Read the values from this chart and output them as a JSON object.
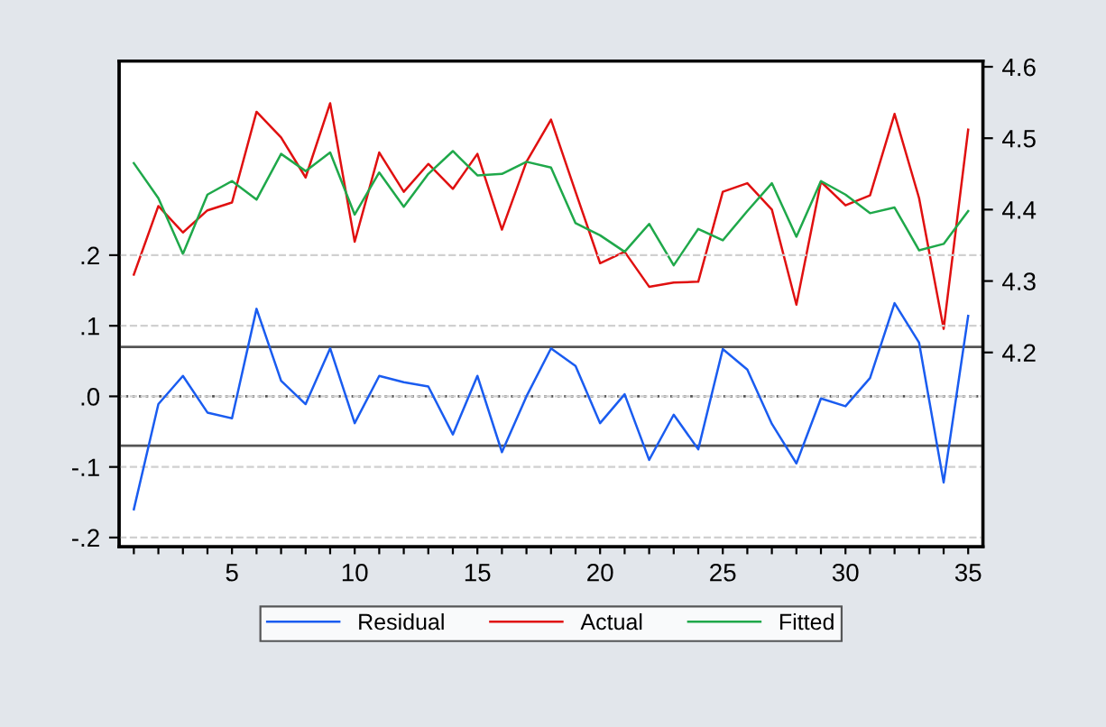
{
  "chart_data": {
    "type": "line",
    "x": [
      1,
      2,
      3,
      4,
      5,
      6,
      7,
      8,
      9,
      10,
      11,
      12,
      13,
      14,
      15,
      16,
      17,
      18,
      19,
      20,
      21,
      22,
      23,
      24,
      25,
      26,
      27,
      28,
      29,
      30,
      31,
      32,
      33,
      34,
      35
    ],
    "series": [
      {
        "name": "Residual",
        "color": "#1a5cf0",
        "values": [
          -0.16,
          -0.011,
          0.029,
          -0.023,
          -0.031,
          0.124,
          0.022,
          -0.011,
          0.068,
          -0.038,
          0.029,
          0.02,
          0.014,
          -0.054,
          0.029,
          -0.079,
          0.0,
          0.068,
          0.043,
          -0.038,
          0.003,
          -0.09,
          -0.026,
          -0.075,
          0.067,
          0.038,
          -0.039,
          -0.095,
          -0.003,
          -0.014,
          0.026,
          0.132,
          0.076,
          -0.122,
          0.114
        ]
      },
      {
        "name": "Actual",
        "color": "#e01010",
        "axis": "y2",
        "values": [
          4.309,
          4.405,
          4.368,
          4.399,
          4.41,
          4.537,
          4.501,
          4.445,
          4.549,
          4.355,
          4.48,
          4.425,
          4.464,
          4.429,
          4.478,
          4.372,
          4.467,
          4.526,
          4.425,
          4.325,
          4.341,
          4.292,
          4.298,
          4.299,
          4.425,
          4.437,
          4.4,
          4.267,
          4.439,
          4.406,
          4.42,
          4.534,
          4.416,
          4.233,
          4.512
        ]
      },
      {
        "name": "Fitted",
        "color": "#1fa84a",
        "axis": "y2",
        "values": [
          4.465,
          4.416,
          4.338,
          4.421,
          4.44,
          4.414,
          4.478,
          4.454,
          4.48,
          4.393,
          4.452,
          4.404,
          4.45,
          4.482,
          4.448,
          4.45,
          4.467,
          4.459,
          4.381,
          4.364,
          4.341,
          4.38,
          4.322,
          4.373,
          4.357,
          4.398,
          4.437,
          4.362,
          4.44,
          4.421,
          4.395,
          4.403,
          4.343,
          4.352,
          4.398
        ]
      }
    ],
    "xlim": [
      0.4,
      35.6
    ],
    "xticks": [
      {
        "value": 1,
        "label": null
      },
      {
        "value": 2,
        "label": null
      },
      {
        "value": 3,
        "label": null
      },
      {
        "value": 4,
        "label": null
      },
      5,
      {
        "value": 6,
        "label": null
      },
      {
        "value": 7,
        "label": null
      },
      {
        "value": 8,
        "label": null
      },
      {
        "value": 9,
        "label": null
      },
      10,
      {
        "value": 11,
        "label": null
      },
      {
        "value": 12,
        "label": null
      },
      {
        "value": 13,
        "label": null
      },
      {
        "value": 14,
        "label": null
      },
      15,
      {
        "value": 16,
        "label": null
      },
      {
        "value": 17,
        "label": null
      },
      {
        "value": 18,
        "label": null
      },
      {
        "value": 19,
        "label": null
      },
      20,
      {
        "value": 21,
        "label": null
      },
      {
        "value": 22,
        "label": null
      },
      {
        "value": 23,
        "label": null
      },
      {
        "value": 24,
        "label": null
      },
      25,
      {
        "value": 26,
        "label": null
      },
      {
        "value": 27,
        "label": null
      },
      {
        "value": 28,
        "label": null
      },
      {
        "value": 29,
        "label": null
      },
      30,
      {
        "value": 31,
        "label": null
      },
      {
        "value": 32,
        "label": null
      },
      {
        "value": 33,
        "label": null
      },
      {
        "value": 34,
        "label": null
      },
      35
    ],
    "ylim": [
      -0.213,
      0.475
    ],
    "yticks": [
      {
        "value": -0.2,
        "label": "-.2"
      },
      {
        "value": -0.1,
        "label": "-.1"
      },
      {
        "value": 0.0,
        "label": ".0"
      },
      {
        "value": 0.1,
        "label": ".1"
      },
      {
        "value": 0.2,
        "label": ".2"
      }
    ],
    "y2lim": [
      3.928,
      4.608
    ],
    "y2ticks": [
      4.2,
      4.3,
      4.4,
      4.5,
      4.6
    ],
    "ref_lines": [
      {
        "axis": "y",
        "value": 0.0,
        "color": "#555555",
        "line_style": "dotted"
      },
      {
        "axis": "y",
        "value": 0.07,
        "color": "#555555",
        "line_style": "solid"
      },
      {
        "axis": "y",
        "value": -0.07,
        "color": "#555555",
        "line_style": "solid"
      }
    ],
    "grid": "y",
    "legend": "bottom",
    "line_style": "solid",
    "marker": "none"
  }
}
